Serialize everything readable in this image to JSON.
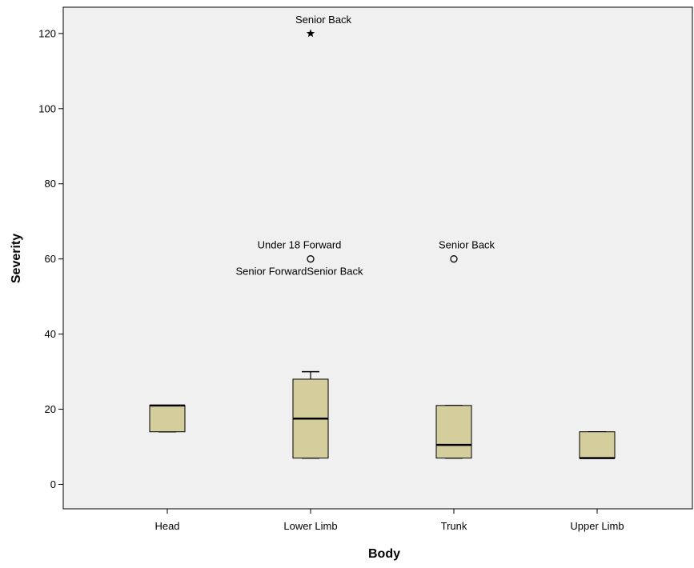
{
  "chart_data": {
    "type": "boxplot",
    "title": "",
    "xlabel": "Body",
    "ylabel": "Severity",
    "ylim": [
      -6.5,
      127
    ],
    "yticks": [
      0,
      20,
      40,
      60,
      80,
      100,
      120
    ],
    "grid": false,
    "legend": "none",
    "colors": {
      "plot_background": "#f0f0f0",
      "box_fill": "#d4cd9c",
      "box_stroke": "#000000"
    },
    "categories": [
      "Head",
      "Lower Limb",
      "Trunk",
      "Upper Limb"
    ],
    "boxes": [
      {
        "category": "Head",
        "whisker_low": 14,
        "q1": 14,
        "median": 21,
        "q3": 21,
        "whisker_high": 21
      },
      {
        "category": "Lower Limb",
        "whisker_low": 7,
        "q1": 7,
        "median": 17.5,
        "q3": 28,
        "whisker_high": 30
      },
      {
        "category": "Trunk",
        "whisker_low": 7,
        "q1": 7,
        "median": 10.5,
        "q3": 21,
        "whisker_high": 21
      },
      {
        "category": "Upper Limb",
        "whisker_low": 7,
        "q1": 7,
        "median": 7,
        "q3": 14,
        "whisker_high": 14
      }
    ],
    "outliers": [
      {
        "category": "Lower Limb",
        "value": 120,
        "marker": "star",
        "labels": [
          "Senior Back"
        ],
        "label_side": "above"
      },
      {
        "category": "Lower Limb",
        "value": 60,
        "marker": "circle",
        "labels": [
          "Under 18 Forward",
          "Senior ForwardSenior Back"
        ],
        "label_side": "above-below"
      },
      {
        "category": "Trunk",
        "value": 60,
        "marker": "circle",
        "labels": [
          "Senior Back"
        ],
        "label_side": "above"
      }
    ]
  }
}
